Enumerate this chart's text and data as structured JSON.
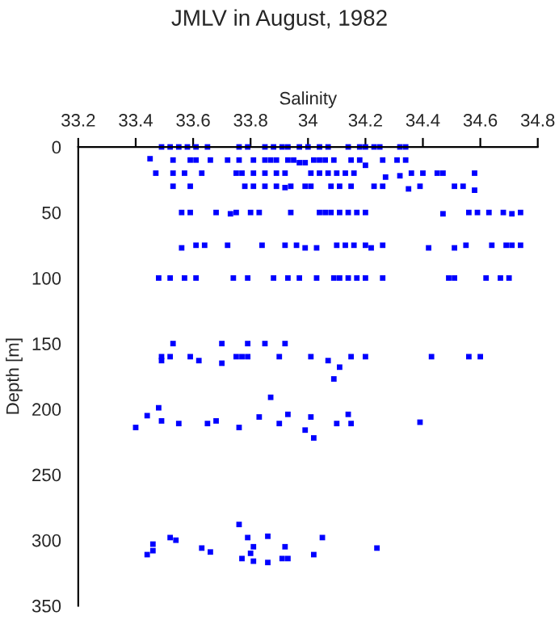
{
  "chart_data": {
    "type": "scatter",
    "title": "JMLV in August, 1982",
    "xlabel": "Salinity",
    "ylabel": "Depth [m]",
    "xlim": [
      33.2,
      34.8
    ],
    "xticks": [
      33.2,
      33.4,
      33.6,
      33.8,
      34,
      34.2,
      34.4,
      34.6,
      34.8
    ],
    "ylim": [
      350,
      0
    ],
    "yticks": [
      0,
      50,
      100,
      150,
      200,
      250,
      300,
      350
    ],
    "grid": false,
    "marker": "square",
    "series": [
      {
        "color": "#0000ff",
        "x": [
          33.49,
          33.52,
          33.55,
          33.58,
          33.61,
          33.65,
          33.76,
          33.79,
          33.85,
          33.88,
          33.91,
          33.93,
          33.97,
          34.0,
          34.04,
          34.07,
          34.14,
          34.18,
          34.2,
          34.23,
          34.25,
          34.32,
          34.34,
          33.45,
          33.53,
          33.59,
          33.61,
          33.66,
          33.72,
          33.76,
          33.81,
          33.85,
          33.87,
          33.89,
          33.93,
          33.95,
          33.97,
          33.99,
          34.02,
          34.04,
          34.06,
          34.09,
          34.15,
          34.18,
          34.2,
          34.26,
          34.31,
          34.34,
          33.47,
          33.53,
          33.57,
          33.63,
          33.75,
          33.77,
          33.81,
          33.85,
          33.89,
          33.92,
          34.01,
          34.04,
          34.07,
          34.1,
          34.13,
          34.16,
          34.27,
          34.32,
          34.36,
          34.4,
          34.45,
          34.47,
          34.58,
          33.53,
          33.59,
          33.78,
          33.81,
          33.85,
          33.89,
          33.92,
          33.94,
          33.99,
          34.01,
          34.08,
          34.11,
          34.15,
          34.23,
          34.26,
          34.35,
          34.39,
          34.51,
          34.54,
          34.58,
          33.56,
          33.59,
          33.68,
          33.73,
          33.75,
          33.8,
          33.83,
          33.94,
          34.04,
          34.06,
          34.08,
          34.11,
          34.14,
          34.17,
          34.2,
          34.47,
          34.56,
          34.59,
          34.63,
          34.68,
          34.71,
          34.74,
          33.56,
          33.61,
          33.64,
          33.72,
          33.84,
          33.92,
          33.96,
          33.99,
          34.03,
          34.1,
          34.13,
          34.16,
          34.2,
          34.22,
          34.26,
          34.42,
          34.51,
          34.55,
          34.64,
          34.69,
          34.71,
          34.74,
          33.48,
          33.52,
          33.57,
          33.61,
          33.74,
          33.79,
          33.88,
          33.93,
          33.97,
          34.03,
          34.09,
          34.11,
          34.14,
          34.17,
          34.2,
          34.26,
          34.49,
          34.51,
          34.62,
          34.67,
          34.7,
          33.53,
          33.7,
          33.79,
          33.85,
          33.92,
          33.49,
          33.49,
          33.52,
          33.59,
          33.62,
          33.7,
          33.75,
          33.77,
          33.79,
          33.9,
          34.01,
          34.07,
          34.11,
          34.15,
          34.2,
          34.43,
          34.56,
          34.6,
          34.09,
          33.4,
          33.44,
          33.48,
          33.49,
          33.55,
          33.65,
          33.68,
          33.76,
          33.83,
          33.87,
          33.9,
          33.93,
          33.99,
          34.01,
          34.02,
          34.1,
          34.14,
          34.15,
          34.39,
          33.44,
          33.46,
          33.46,
          33.52,
          33.54,
          33.63,
          33.66,
          33.76,
          33.79,
          33.81,
          33.8,
          33.77,
          33.81,
          33.86,
          33.86,
          33.91,
          33.92,
          33.93,
          34.02,
          34.05,
          34.24
        ],
        "values": [
          0,
          0,
          0,
          0,
          0,
          0,
          0,
          0,
          0,
          0,
          0,
          0,
          0,
          0,
          0,
          0,
          0,
          0,
          0,
          0,
          0,
          0,
          0,
          9,
          10,
          10,
          10,
          10,
          10,
          10,
          10,
          10,
          10,
          10,
          10,
          10,
          12,
          12,
          10,
          10,
          10,
          10,
          10,
          10,
          14,
          10,
          10,
          10,
          20,
          20,
          20,
          20,
          20,
          20,
          20,
          20,
          20,
          20,
          20,
          20,
          20,
          20,
          20,
          20,
          23,
          22,
          20,
          20,
          20,
          20,
          20,
          30,
          30,
          30,
          30,
          30,
          30,
          31,
          30,
          30,
          30,
          30,
          30,
          30,
          30,
          30,
          32,
          30,
          30,
          30,
          33,
          50,
          50,
          50,
          51,
          50,
          50,
          50,
          50,
          50,
          50,
          50,
          50,
          50,
          50,
          50,
          51,
          50,
          50,
          50,
          50,
          51,
          50,
          77,
          75,
          75,
          75,
          75,
          75,
          75,
          77,
          77,
          75,
          75,
          75,
          75,
          77,
          75,
          77,
          77,
          75,
          75,
          75,
          75,
          75,
          100,
          100,
          100,
          100,
          100,
          100,
          100,
          100,
          100,
          100,
          100,
          100,
          100,
          100,
          100,
          100,
          100,
          100,
          100,
          100,
          100,
          150,
          150,
          150,
          150,
          150,
          160,
          163,
          160,
          160,
          163,
          165,
          160,
          160,
          160,
          160,
          160,
          163,
          168,
          160,
          160,
          160,
          160,
          160,
          177,
          214,
          205,
          199,
          209,
          211,
          211,
          209,
          214,
          206,
          191,
          211,
          204,
          216,
          206,
          222,
          211,
          204,
          211,
          210,
          311,
          308,
          303,
          298,
          300,
          306,
          309,
          288,
          298,
          305,
          310,
          314,
          316,
          297,
          317,
          314,
          305,
          314,
          311,
          298,
          306
        ]
      }
    ]
  }
}
